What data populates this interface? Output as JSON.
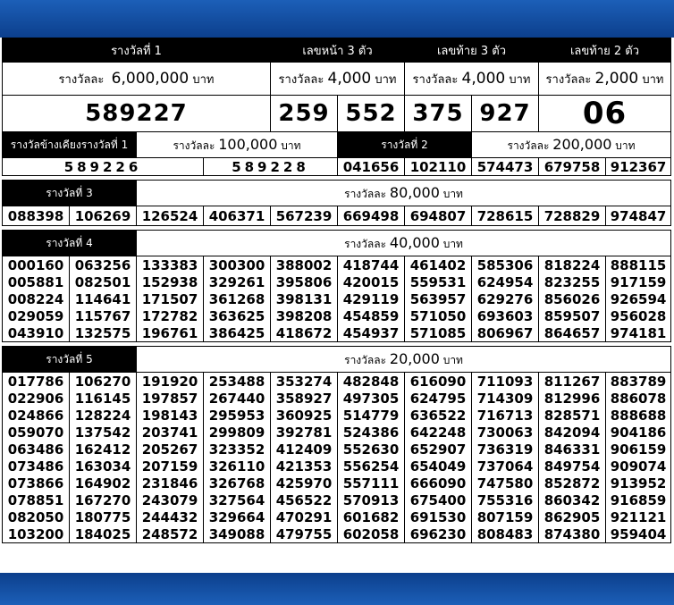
{
  "top": {
    "first": {
      "title": "รางวัลที่ 1",
      "amount_prefix": "รางวัลละ",
      "amount": "6,000,000",
      "unit": "บาท",
      "number": "589227"
    },
    "front3": {
      "title": "เลขหน้า 3 ตัว",
      "amount_prefix": "รางวัลละ",
      "amount": "4,000",
      "unit": "บาท",
      "numbers": [
        "259",
        "552"
      ]
    },
    "back3": {
      "title": "เลขท้าย 3 ตัว",
      "amount_prefix": "รางวัลละ",
      "amount": "4,000",
      "unit": "บาท",
      "numbers": [
        "375",
        "927"
      ]
    },
    "back2": {
      "title": "เลขท้าย 2 ตัว",
      "amount_prefix": "รางวัลละ",
      "amount": "2,000",
      "unit": "บาท",
      "number": "06"
    }
  },
  "near": {
    "title": "รางวัลข้างเคียงรางวัลที่ 1",
    "amount_prefix": "รางวัลละ",
    "amount": "100,000",
    "unit": "บาท",
    "numbers": [
      "589226",
      "589228"
    ]
  },
  "second": {
    "title": "รางวัลที่  2",
    "amount_prefix": "รางวัลละ",
    "amount": "200,000",
    "unit": "บาท",
    "numbers": [
      "041656",
      "102110",
      "574473",
      "679758",
      "912367"
    ]
  },
  "third": {
    "title": "รางวัลที่  3",
    "amount_prefix": "รางวัลละ",
    "amount": "80,000",
    "unit": "บาท",
    "numbers": [
      "088398",
      "106269",
      "126524",
      "406371",
      "567239",
      "669498",
      "694807",
      "728615",
      "728829",
      "974847"
    ]
  },
  "fourth": {
    "title": "รางวัลที่  4",
    "amount_prefix": "รางวัลละ",
    "amount": "40,000",
    "unit": "บาท",
    "rows": [
      [
        "000160",
        "063256",
        "133383",
        "300300",
        "388002",
        "418744",
        "461402",
        "585306",
        "818224",
        "888115"
      ],
      [
        "005881",
        "082501",
        "152938",
        "329261",
        "395806",
        "420015",
        "559531",
        "624954",
        "823255",
        "917159"
      ],
      [
        "008224",
        "114641",
        "171507",
        "361268",
        "398131",
        "429119",
        "563957",
        "629276",
        "856026",
        "926594"
      ],
      [
        "029059",
        "115767",
        "172782",
        "363625",
        "398208",
        "454859",
        "571050",
        "693603",
        "859507",
        "956028"
      ],
      [
        "043910",
        "132575",
        "196761",
        "386425",
        "418672",
        "454937",
        "571085",
        "806967",
        "864657",
        "974181"
      ]
    ]
  },
  "fifth": {
    "title": "รางวัลที่  5",
    "amount_prefix": "รางวัลละ",
    "amount": "20,000",
    "unit": "บาท",
    "rows": [
      [
        "017786",
        "106270",
        "191920",
        "253488",
        "353274",
        "482848",
        "616090",
        "711093",
        "811267",
        "883789"
      ],
      [
        "022906",
        "116145",
        "197857",
        "267440",
        "358927",
        "497305",
        "624795",
        "714309",
        "812996",
        "886078"
      ],
      [
        "024866",
        "128224",
        "198143",
        "295953",
        "360925",
        "514779",
        "636522",
        "716713",
        "828571",
        "888688"
      ],
      [
        "059070",
        "137542",
        "203741",
        "299809",
        "392781",
        "524386",
        "642248",
        "730063",
        "842094",
        "904186"
      ],
      [
        "063486",
        "162412",
        "205267",
        "323352",
        "412409",
        "552630",
        "652907",
        "736319",
        "846331",
        "906159"
      ],
      [
        "073486",
        "163034",
        "207159",
        "326110",
        "421353",
        "556254",
        "654049",
        "737064",
        "849754",
        "909074"
      ],
      [
        "073866",
        "164902",
        "231846",
        "326768",
        "425970",
        "557111",
        "666090",
        "747580",
        "852872",
        "913952"
      ],
      [
        "078851",
        "167270",
        "243079",
        "327564",
        "456522",
        "570913",
        "675400",
        "755316",
        "860342",
        "916859"
      ],
      [
        "082050",
        "180775",
        "244432",
        "329664",
        "470291",
        "601682",
        "691530",
        "807159",
        "862905",
        "921121"
      ],
      [
        "103200",
        "184025",
        "248572",
        "349088",
        "479755",
        "602058",
        "696230",
        "808483",
        "874380",
        "959404"
      ]
    ]
  }
}
